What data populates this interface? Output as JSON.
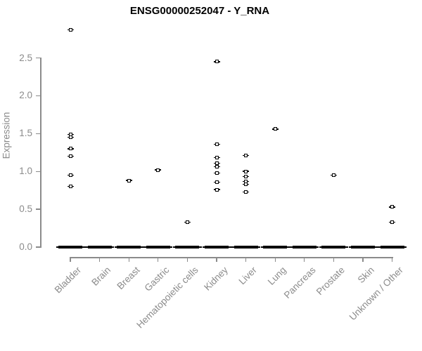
{
  "chart_data": {
    "type": "scatter",
    "title": "ENSG00000252047 - Y_RNA",
    "ylabel": "Expression",
    "xlabel": "",
    "ylim": [
      0.0,
      2.9
    ],
    "yticks": [
      0.0,
      0.5,
      1.0,
      1.5,
      2.0,
      2.5
    ],
    "ytick_labels": [
      "0.0",
      "0.5",
      "1.0",
      "1.5",
      "2.0",
      "2.5"
    ],
    "grid": false,
    "legend": "none",
    "point_marker": "open-square",
    "categories": [
      "Bladder",
      "Brain",
      "Breast",
      "Gastric",
      "Hematopoietic cells",
      "Kidney",
      "Liver",
      "Lung",
      "Pancreas",
      "Prostate",
      "Skin",
      "Unknown / Other"
    ],
    "series": [
      {
        "category": "Bladder",
        "zero_cluster": true,
        "values": [
          2.87,
          1.49,
          1.45,
          1.3,
          1.2,
          0.95,
          0.8
        ]
      },
      {
        "category": "Brain",
        "zero_cluster": true,
        "values": []
      },
      {
        "category": "Breast",
        "zero_cluster": true,
        "values": [
          0.88
        ]
      },
      {
        "category": "Gastric",
        "zero_cluster": true,
        "values": [
          1.02
        ]
      },
      {
        "category": "Hematopoietic cells",
        "zero_cluster": true,
        "values": [
          0.33
        ]
      },
      {
        "category": "Kidney",
        "zero_cluster": true,
        "values": [
          2.45,
          1.36,
          1.18,
          1.11,
          1.06,
          0.98,
          0.86,
          0.76
        ]
      },
      {
        "category": "Liver",
        "zero_cluster": true,
        "values": [
          1.21,
          1.0,
          0.93,
          0.87,
          0.83,
          0.73
        ]
      },
      {
        "category": "Lung",
        "zero_cluster": true,
        "values": [
          1.56
        ]
      },
      {
        "category": "Pancreas",
        "zero_cluster": true,
        "values": []
      },
      {
        "category": "Prostate",
        "zero_cluster": true,
        "values": [
          0.95
        ]
      },
      {
        "category": "Skin",
        "zero_cluster": true,
        "values": []
      },
      {
        "category": "Unknown / Other",
        "zero_cluster": true,
        "values": [
          0.53,
          0.33
        ]
      }
    ],
    "colors": {
      "points": "#000000",
      "axis": "#8b8b8b",
      "tick_labels": "#8b8b8b",
      "title": "#000000",
      "background": "#ffffff"
    }
  }
}
